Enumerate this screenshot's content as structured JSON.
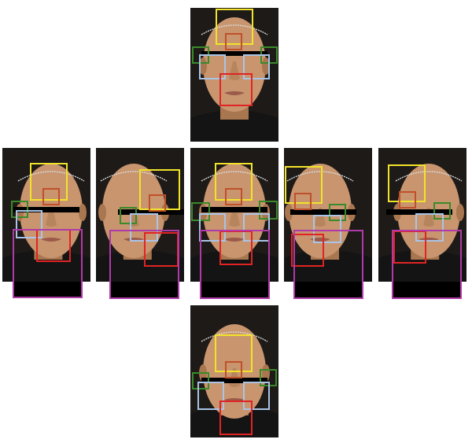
{
  "figure": {
    "description_visible_text": "",
    "colors": {
      "background": "#ffffff",
      "hair": "#1d1a18",
      "skin": "#c8956f",
      "skin_shadow": "#a8764f",
      "clothing": "#141414",
      "censor_bar": "#000000",
      "box_forehead": "#f2e32a",
      "box_glabella": "#c0502a",
      "box_crows_feet": "#3a8a2a",
      "box_under_eye": "#a9c4e6",
      "box_mouth": "#e02424",
      "box_lower_face": "#b03aa8"
    },
    "panels": [
      {
        "id": "top",
        "view": "frontal",
        "regions": [
          "forehead",
          "glabella",
          "crows-feet-left",
          "crows-feet-right",
          "under-eye-left",
          "under-eye-right",
          "perioral"
        ]
      },
      {
        "id": "middle-far-left",
        "view": "right-oblique-45",
        "regions": [
          "forehead",
          "glabella",
          "crows-feet",
          "under-eye",
          "perioral",
          "lower-face"
        ]
      },
      {
        "id": "middle-left",
        "view": "left-oblique-45",
        "regions": [
          "forehead",
          "glabella",
          "crows-feet",
          "under-eye",
          "perioral",
          "lower-face"
        ]
      },
      {
        "id": "middle-center",
        "view": "frontal",
        "regions": [
          "forehead",
          "glabella",
          "crows-feet-left",
          "crows-feet-right",
          "under-eye-left",
          "under-eye-right",
          "perioral",
          "lower-face"
        ]
      },
      {
        "id": "middle-right",
        "view": "right-oblique",
        "regions": [
          "forehead",
          "glabella",
          "crows-feet",
          "under-eye",
          "perioral",
          "lower-face"
        ]
      },
      {
        "id": "middle-far-right",
        "view": "left-oblique",
        "regions": [
          "forehead",
          "glabella",
          "crows-feet",
          "under-eye",
          "perioral",
          "lower-face"
        ]
      },
      {
        "id": "bottom",
        "view": "frontal-tilted-up",
        "regions": [
          "forehead",
          "glabella",
          "crows-feet-left",
          "crows-feet-right",
          "under-eye-left",
          "under-eye-right",
          "perioral"
        ]
      }
    ]
  }
}
